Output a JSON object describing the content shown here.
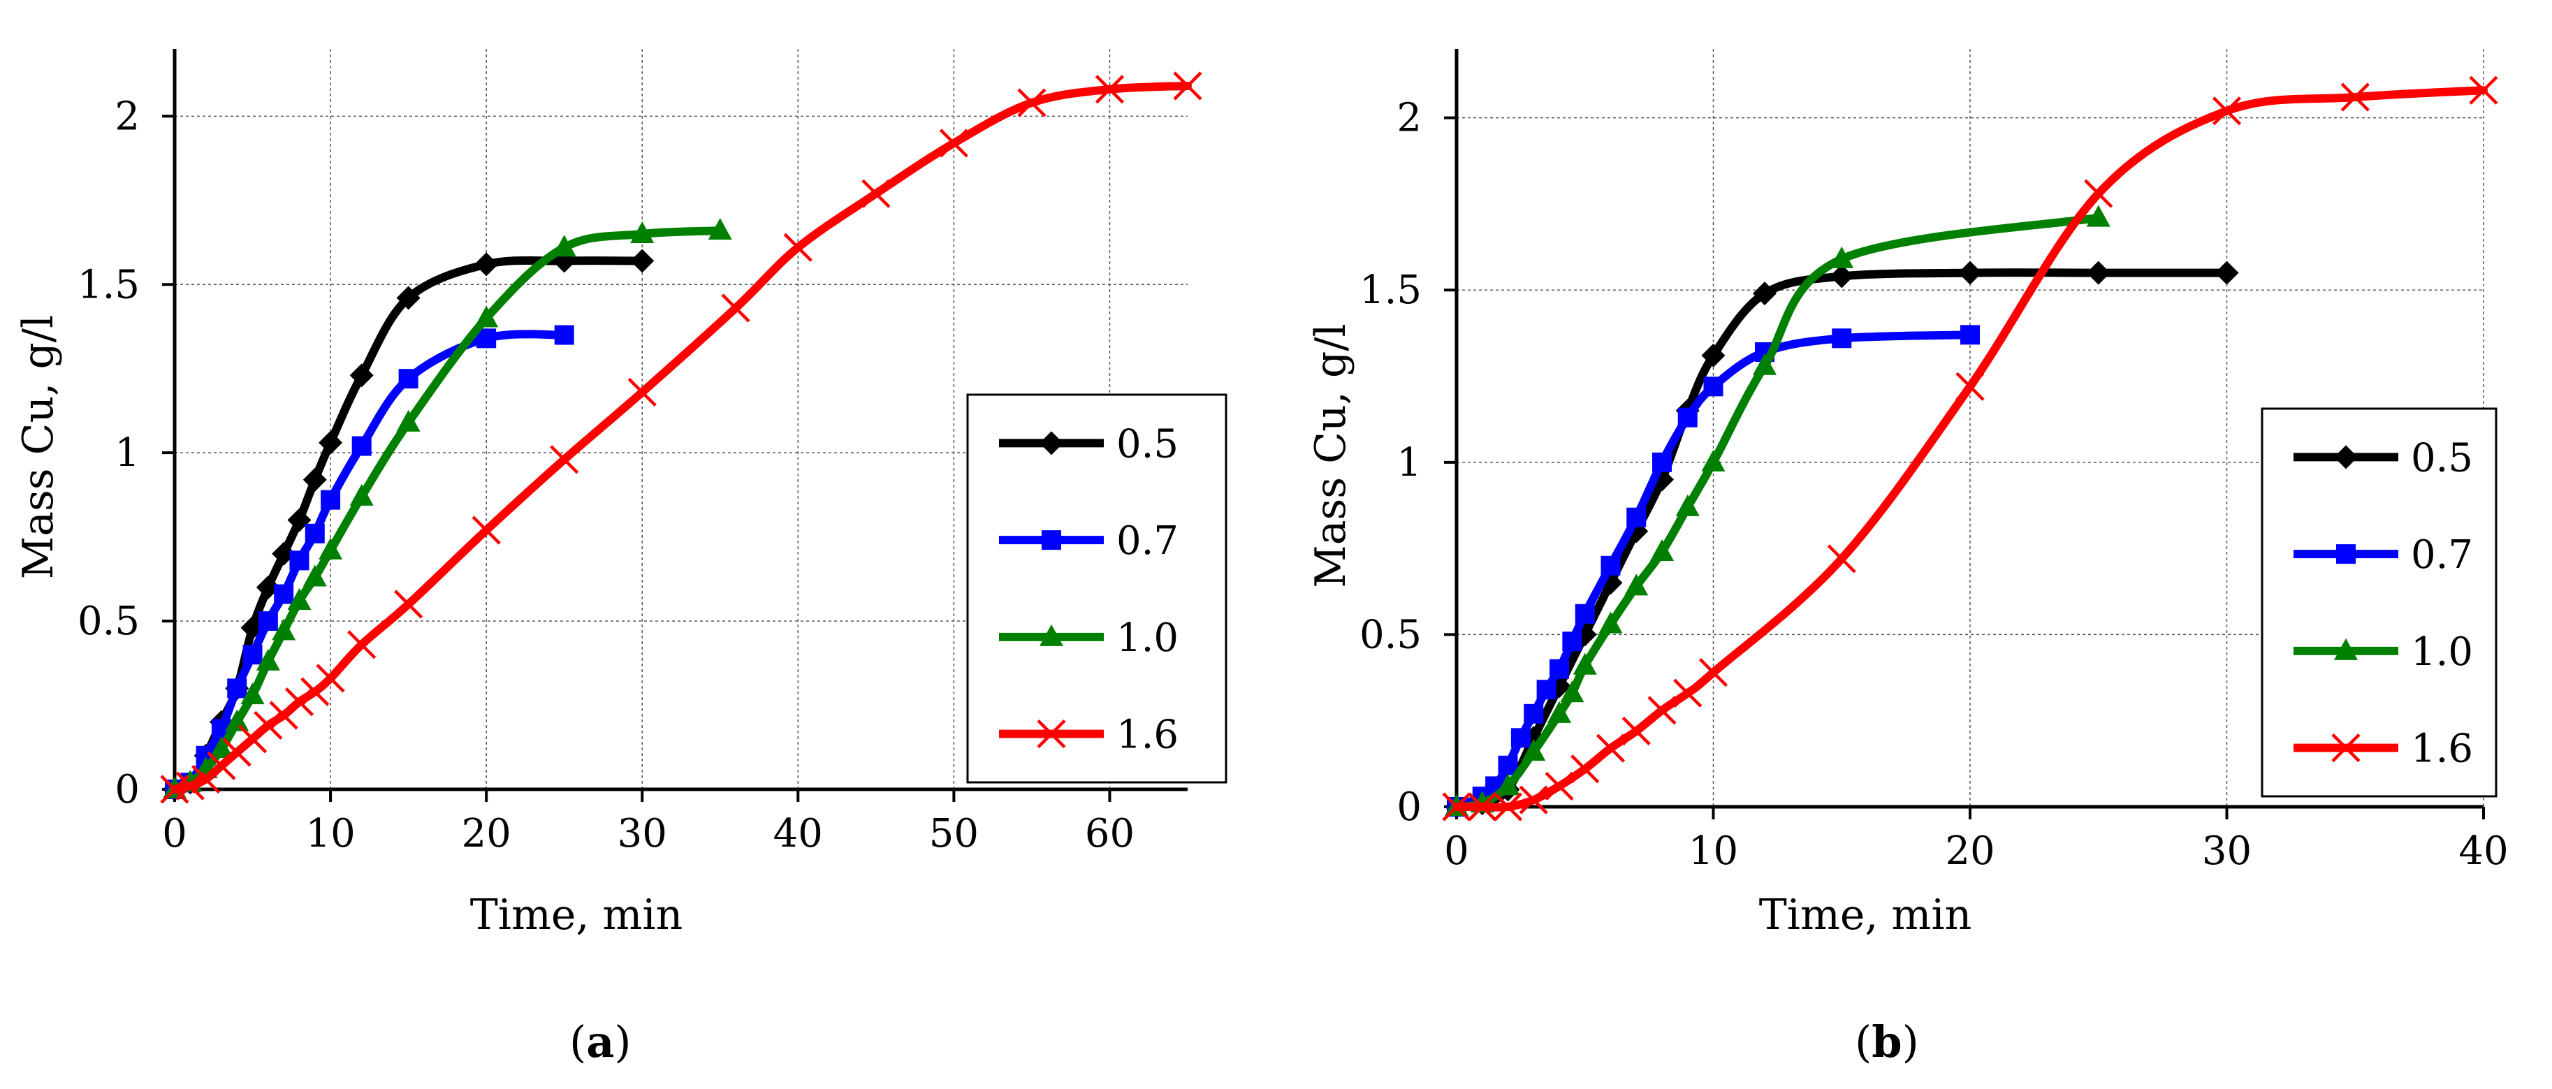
{
  "chart_data": [
    {
      "type": "line",
      "panel_label": "a",
      "xlabel": "Time, min",
      "ylabel": "Mass Cu, g/l",
      "xlim": [
        0,
        65
      ],
      "ylim": [
        0,
        2.2
      ],
      "xticks": [
        0,
        10,
        20,
        30,
        40,
        50,
        60
      ],
      "yticks": [
        0,
        0.5,
        1,
        1.5,
        2
      ],
      "ytick_labels": [
        "0",
        "0.5",
        "1",
        "1.5",
        "2"
      ],
      "grid": true,
      "legend_position": "right",
      "series": [
        {
          "name": "0.5",
          "color": "#000000",
          "marker": "diamond",
          "points": [
            [
              0,
              0
            ],
            [
              1,
              0.02
            ],
            [
              2,
              0.1
            ],
            [
              3,
              0.2
            ],
            [
              4,
              0.3
            ],
            [
              5,
              0.48
            ],
            [
              6,
              0.6
            ],
            [
              7,
              0.7
            ],
            [
              8,
              0.8
            ],
            [
              9,
              0.92
            ],
            [
              10,
              1.03
            ],
            [
              12,
              1.23
            ],
            [
              15,
              1.46
            ],
            [
              20,
              1.56
            ],
            [
              25,
              1.57
            ],
            [
              30,
              1.57
            ]
          ]
        },
        {
          "name": "0.7",
          "color": "#0000ff",
          "marker": "square",
          "points": [
            [
              0,
              0
            ],
            [
              1,
              0.02
            ],
            [
              2,
              0.1
            ],
            [
              3,
              0.18
            ],
            [
              4,
              0.3
            ],
            [
              5,
              0.4
            ],
            [
              6,
              0.5
            ],
            [
              7,
              0.58
            ],
            [
              8,
              0.68
            ],
            [
              9,
              0.76
            ],
            [
              10,
              0.86
            ],
            [
              12,
              1.02
            ],
            [
              15,
              1.22
            ],
            [
              20,
              1.34
            ],
            [
              25,
              1.35
            ]
          ]
        },
        {
          "name": "1.0",
          "color": "#008000",
          "marker": "triangle",
          "points": [
            [
              0,
              0
            ],
            [
              1,
              0.02
            ],
            [
              2,
              0.06
            ],
            [
              3,
              0.12
            ],
            [
              4,
              0.2
            ],
            [
              5,
              0.28
            ],
            [
              6,
              0.38
            ],
            [
              7,
              0.47
            ],
            [
              8,
              0.56
            ],
            [
              9,
              0.63
            ],
            [
              10,
              0.71
            ],
            [
              12,
              0.87
            ],
            [
              15,
              1.09
            ],
            [
              20,
              1.4
            ],
            [
              25,
              1.61
            ],
            [
              30,
              1.65
            ],
            [
              35,
              1.66
            ]
          ]
        },
        {
          "name": "1.6",
          "color": "#ff0000",
          "marker": "x",
          "points": [
            [
              0,
              0
            ],
            [
              1,
              0.01
            ],
            [
              2,
              0.03
            ],
            [
              3,
              0.07
            ],
            [
              4,
              0.11
            ],
            [
              5,
              0.15
            ],
            [
              6,
              0.19
            ],
            [
              7,
              0.22
            ],
            [
              8,
              0.26
            ],
            [
              9,
              0.29
            ],
            [
              10,
              0.33
            ],
            [
              12,
              0.43
            ],
            [
              15,
              0.55
            ],
            [
              20,
              0.77
            ],
            [
              25,
              0.98
            ],
            [
              30,
              1.18
            ],
            [
              36,
              1.43
            ],
            [
              40,
              1.61
            ],
            [
              45,
              1.77
            ],
            [
              50,
              1.92
            ],
            [
              55,
              2.04
            ],
            [
              60,
              2.08
            ],
            [
              65,
              2.09
            ]
          ]
        }
      ]
    },
    {
      "type": "line",
      "panel_label": "b",
      "xlabel": "Time, min",
      "ylabel": "Mass Cu, g/l",
      "xlim": [
        0,
        40
      ],
      "ylim": [
        0,
        2.2
      ],
      "xticks": [
        0,
        10,
        20,
        30,
        40
      ],
      "yticks": [
        0,
        0.5,
        1,
        1.5,
        2
      ],
      "ytick_labels": [
        "0",
        "0.5",
        "1",
        "1.5",
        "2"
      ],
      "grid": true,
      "legend_position": "right",
      "series": [
        {
          "name": "0.5",
          "color": "#000000",
          "marker": "diamond",
          "points": [
            [
              0,
              0
            ],
            [
              1,
              0.01
            ],
            [
              2,
              0.05
            ],
            [
              3,
              0.2
            ],
            [
              4,
              0.35
            ],
            [
              5,
              0.5
            ],
            [
              6,
              0.65
            ],
            [
              7,
              0.8
            ],
            [
              8,
              0.95
            ],
            [
              9,
              1.15
            ],
            [
              10,
              1.31
            ],
            [
              12,
              1.49
            ],
            [
              15,
              1.54
            ],
            [
              20,
              1.55
            ],
            [
              25,
              1.55
            ],
            [
              30,
              1.55
            ]
          ]
        },
        {
          "name": "0.7",
          "color": "#0000ff",
          "marker": "square",
          "points": [
            [
              0,
              0
            ],
            [
              1,
              0.03
            ],
            [
              1.5,
              0.06
            ],
            [
              2,
              0.12
            ],
            [
              2.5,
              0.2
            ],
            [
              3,
              0.27
            ],
            [
              3.5,
              0.34
            ],
            [
              4,
              0.4
            ],
            [
              4.5,
              0.48
            ],
            [
              5,
              0.56
            ],
            [
              6,
              0.7
            ],
            [
              7,
              0.84
            ],
            [
              8,
              1.0
            ],
            [
              9,
              1.13
            ],
            [
              10,
              1.22
            ],
            [
              12,
              1.32
            ],
            [
              15,
              1.36
            ],
            [
              20,
              1.37
            ]
          ]
        },
        {
          "name": "1.0",
          "color": "#008000",
          "marker": "triangle",
          "points": [
            [
              0,
              0
            ],
            [
              1,
              0.01
            ],
            [
              2,
              0.06
            ],
            [
              3,
              0.16
            ],
            [
              4,
              0.27
            ],
            [
              4.5,
              0.33
            ],
            [
              5,
              0.41
            ],
            [
              6,
              0.53
            ],
            [
              7,
              0.64
            ],
            [
              8,
              0.74
            ],
            [
              9,
              0.87
            ],
            [
              10,
              1.0
            ],
            [
              12,
              1.28
            ],
            [
              15,
              1.59
            ],
            [
              25,
              1.71
            ]
          ]
        },
        {
          "name": "1.6",
          "color": "#ff0000",
          "marker": "x",
          "points": [
            [
              0,
              0
            ],
            [
              1,
              0.0
            ],
            [
              2,
              0.0
            ],
            [
              3,
              0.02
            ],
            [
              4,
              0.06
            ],
            [
              5,
              0.11
            ],
            [
              6,
              0.17
            ],
            [
              7,
              0.22
            ],
            [
              8,
              0.28
            ],
            [
              9,
              0.33
            ],
            [
              10,
              0.39
            ],
            [
              15,
              0.72
            ],
            [
              20,
              1.22
            ],
            [
              25,
              1.78
            ],
            [
              30,
              2.02
            ],
            [
              35,
              2.06
            ],
            [
              40,
              2.08
            ]
          ]
        }
      ]
    }
  ]
}
